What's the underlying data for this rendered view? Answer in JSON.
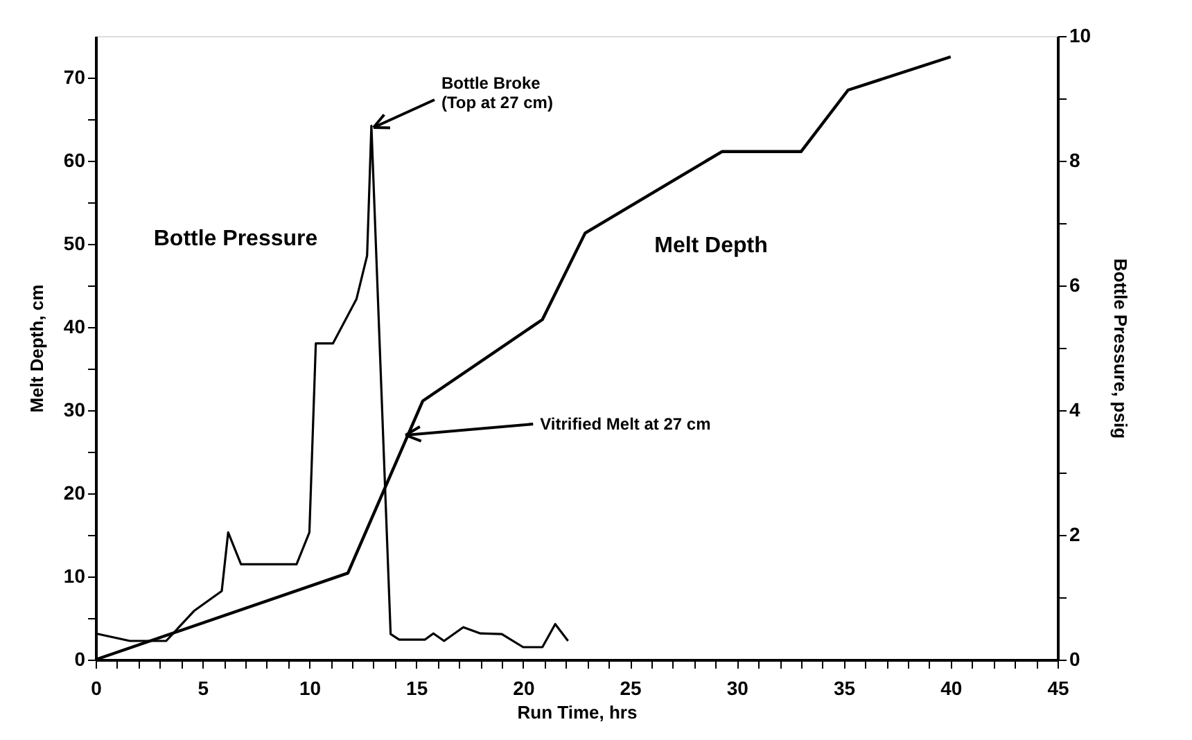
{
  "chart_data": {
    "type": "line",
    "xlabel": "Run Time, hrs",
    "ylabel": "Melt Depth, cm",
    "y2label": "Bottle Pressure, psig",
    "xlim": [
      0,
      45
    ],
    "ylim": [
      0,
      75
    ],
    "y2lim": [
      0,
      10
    ],
    "xticks": [
      0,
      {
        "value": 1,
        "label": null
      },
      {
        "value": 2,
        "label": null
      },
      {
        "value": 3,
        "label": null
      },
      {
        "value": 4,
        "label": null
      },
      5,
      {
        "value": 6,
        "label": null
      },
      {
        "value": 7,
        "label": null
      },
      {
        "value": 8,
        "label": null
      },
      {
        "value": 9,
        "label": null
      },
      10,
      {
        "value": 11,
        "label": null
      },
      {
        "value": 12,
        "label": null
      },
      {
        "value": 13,
        "label": null
      },
      {
        "value": 14,
        "label": null
      },
      15,
      {
        "value": 16,
        "label": null
      },
      {
        "value": 17,
        "label": null
      },
      {
        "value": 18,
        "label": null
      },
      {
        "value": 19,
        "label": null
      },
      20,
      {
        "value": 21,
        "label": null
      },
      {
        "value": 22,
        "label": null
      },
      {
        "value": 23,
        "label": null
      },
      {
        "value": 24,
        "label": null
      },
      25,
      {
        "value": 26,
        "label": null
      },
      {
        "value": 27,
        "label": null
      },
      {
        "value": 28,
        "label": null
      },
      {
        "value": 29,
        "label": null
      },
      30,
      {
        "value": 31,
        "label": null
      },
      {
        "value": 32,
        "label": null
      },
      {
        "value": 33,
        "label": null
      },
      {
        "value": 34,
        "label": null
      },
      35,
      {
        "value": 36,
        "label": null
      },
      {
        "value": 37,
        "label": null
      },
      {
        "value": 38,
        "label": null
      },
      {
        "value": 39,
        "label": null
      },
      40,
      {
        "value": 41,
        "label": null
      },
      {
        "value": 42,
        "label": null
      },
      {
        "value": 43,
        "label": null
      },
      {
        "value": 44,
        "label": null
      },
      45
    ],
    "yticks": [
      0,
      {
        "value": 5,
        "label": null
      },
      10,
      {
        "value": 15,
        "label": null
      },
      20,
      {
        "value": 25,
        "label": null
      },
      30,
      {
        "value": 35,
        "label": null
      },
      40,
      {
        "value": 45,
        "label": null
      },
      50,
      {
        "value": 55,
        "label": null
      },
      60,
      {
        "value": 65,
        "label": null
      },
      70
    ],
    "y2ticks": [
      0,
      {
        "value": 1,
        "label": null
      },
      2,
      {
        "value": 3,
        "label": null
      },
      4,
      {
        "value": 5,
        "label": null
      },
      6,
      {
        "value": 7,
        "label": null
      },
      8,
      {
        "value": 9,
        "label": null
      },
      10
    ],
    "grid": false,
    "legend": false,
    "line_style": "solid",
    "marker": "none",
    "series": [
      {
        "name": "Melt Depth",
        "color": "#000000",
        "x": [
          0,
          11.8,
          15.3,
          20.9,
          22.9,
          29.3,
          33.0,
          35.2,
          40
        ],
        "values": [
          0,
          10.4,
          31.1,
          40.9,
          51.3,
          61.1,
          61.1,
          68.5,
          72.5
        ]
      },
      {
        "name": "Bottle Pressure",
        "color": "#000000",
        "axis": "y2",
        "x": [
          0,
          1.6,
          3.3,
          4.6,
          5.9,
          6.2,
          6.8,
          9.4,
          10.0,
          10.3,
          11.1,
          12.2,
          12.7,
          12.9,
          13.8,
          14.2,
          15.4,
          15.8,
          16.3,
          17.2,
          18.0,
          19.0,
          20.0,
          20.9,
          21.5,
          22.1
        ],
        "values": [
          0.42,
          0.3,
          0.3,
          0.78,
          1.1,
          2.04,
          1.53,
          1.53,
          2.04,
          5.07,
          5.07,
          5.78,
          6.48,
          8.56,
          0.41,
          0.32,
          0.32,
          0.42,
          0.3,
          0.52,
          0.42,
          0.41,
          0.2,
          0.2,
          0.57,
          0.3
        ]
      }
    ],
    "annotations": [
      {
        "text": "Bottle Broke\n(Top at 27 cm)",
        "x": 13,
        "y": 64
      },
      {
        "text": "Vitrified Melt at 27 cm",
        "x": 14.5,
        "y": 27
      }
    ]
  }
}
